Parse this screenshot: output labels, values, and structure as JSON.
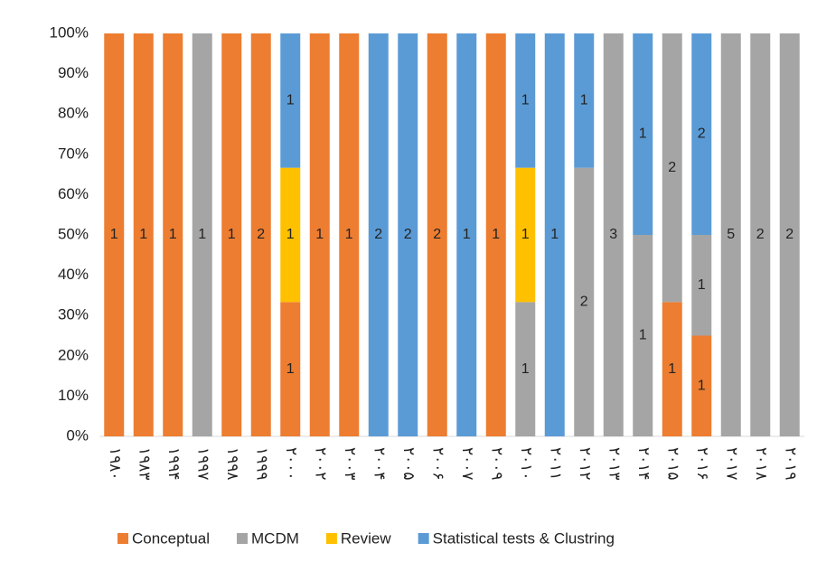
{
  "chart_data": {
    "type": "stacked-bar-100",
    "categories": [
      "۱۹۸۰",
      "۱۹۸۳",
      "۱۹۹۴",
      "۱۹۹۷",
      "۱۹۹۸",
      "۱۹۹۹",
      "۲۰۰۰",
      "۲۰۰۲",
      "۲۰۰۳",
      "۲۰۰۴",
      "۲۰۰۵",
      "۲۰۰۶",
      "۲۰۰۷",
      "۲۰۰۹",
      "۲۰۱۰",
      "۲۰۱۱",
      "۲۰۱۲",
      "۲۰۱۳",
      "۲۰۱۴",
      "۲۰۱۵",
      "۲۰۱۶",
      "۲۰۱۷",
      "۲۰۱۸",
      "۲۰۱۹"
    ],
    "series": [
      {
        "name": "Conceptual",
        "color": "#ed7d31",
        "values": [
          1,
          1,
          1,
          null,
          1,
          2,
          1,
          1,
          1,
          null,
          null,
          2,
          null,
          1,
          null,
          null,
          null,
          null,
          null,
          1,
          1,
          null,
          null,
          null
        ]
      },
      {
        "name": "MCDM",
        "color": "#a5a5a5",
        "values": [
          null,
          null,
          null,
          1,
          null,
          null,
          null,
          null,
          null,
          null,
          null,
          null,
          null,
          null,
          1,
          null,
          2,
          3,
          1,
          2,
          1,
          5,
          2,
          2
        ]
      },
      {
        "name": "Review",
        "color": "#ffc000",
        "values": [
          null,
          null,
          null,
          null,
          null,
          null,
          1,
          null,
          null,
          null,
          null,
          null,
          null,
          null,
          1,
          null,
          null,
          null,
          null,
          null,
          null,
          null,
          null,
          null
        ]
      },
      {
        "name": "Statistical tests & Clustring",
        "color": "#5b9bd5",
        "values": [
          null,
          null,
          null,
          null,
          null,
          null,
          1,
          null,
          null,
          2,
          2,
          null,
          1,
          null,
          1,
          1,
          1,
          null,
          1,
          null,
          2,
          null,
          null,
          null
        ]
      }
    ],
    "ylim": [
      0,
      100
    ],
    "yticks": [
      {
        "value": 0,
        "label": "0%"
      },
      {
        "value": 10,
        "label": "10%"
      },
      {
        "value": 20,
        "label": "20%"
      },
      {
        "value": 30,
        "label": "30%"
      },
      {
        "value": 40,
        "label": "40%"
      },
      {
        "value": 50,
        "label": "50%"
      },
      {
        "value": 60,
        "label": "60%"
      },
      {
        "value": 70,
        "label": "70%"
      },
      {
        "value": 80,
        "label": "80%"
      },
      {
        "value": 90,
        "label": "90%"
      },
      {
        "value": 100,
        "label": "100%"
      }
    ],
    "legend": "bottom"
  }
}
